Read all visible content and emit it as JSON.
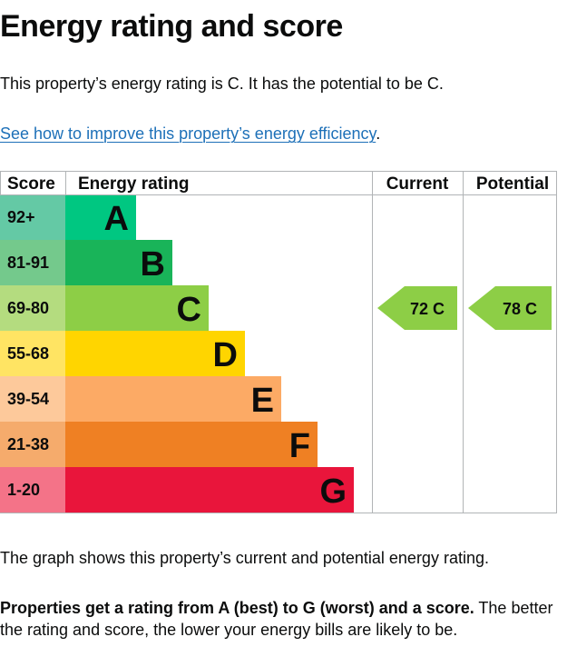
{
  "page": {
    "title": "Energy rating and score",
    "summary": "This property’s energy rating is C. It has the potential to be C.",
    "link_text": "See how to improve this property’s energy efficiency",
    "link_suffix": ".",
    "caption": "The graph shows this property’s current and potential energy rating.",
    "note_bold": "Properties get a rating from A (best) to G (worst) and a score.",
    "note_rest": " The better the rating and score, the lower your energy bills are likely to be."
  },
  "chart_data": {
    "type": "table",
    "headers": {
      "score": "Score",
      "rating": "Energy rating",
      "current": "Current",
      "potential": "Potential"
    },
    "bands": [
      {
        "letter": "A",
        "range": "92+",
        "color": "#00c781",
        "score_bg": "#64c9a5"
      },
      {
        "letter": "B",
        "range": "81-91",
        "color": "#19b459",
        "score_bg": "#74c98c"
      },
      {
        "letter": "C",
        "range": "69-80",
        "color": "#8dce46",
        "score_bg": "#b4dc7f"
      },
      {
        "letter": "D",
        "range": "55-68",
        "color": "#ffd500",
        "score_bg": "#ffe463"
      },
      {
        "letter": "E",
        "range": "39-54",
        "color": "#fcaa65",
        "score_bg": "#fdc99b"
      },
      {
        "letter": "F",
        "range": "21-38",
        "color": "#ef8023",
        "score_bg": "#f5ab6c"
      },
      {
        "letter": "G",
        "range": "1-20",
        "color": "#e9153b",
        "score_bg": "#f47388"
      }
    ],
    "current": {
      "score": 72,
      "letter": "C",
      "label": "72  C"
    },
    "potential": {
      "score": 78,
      "letter": "C",
      "label": "78  C"
    }
  }
}
